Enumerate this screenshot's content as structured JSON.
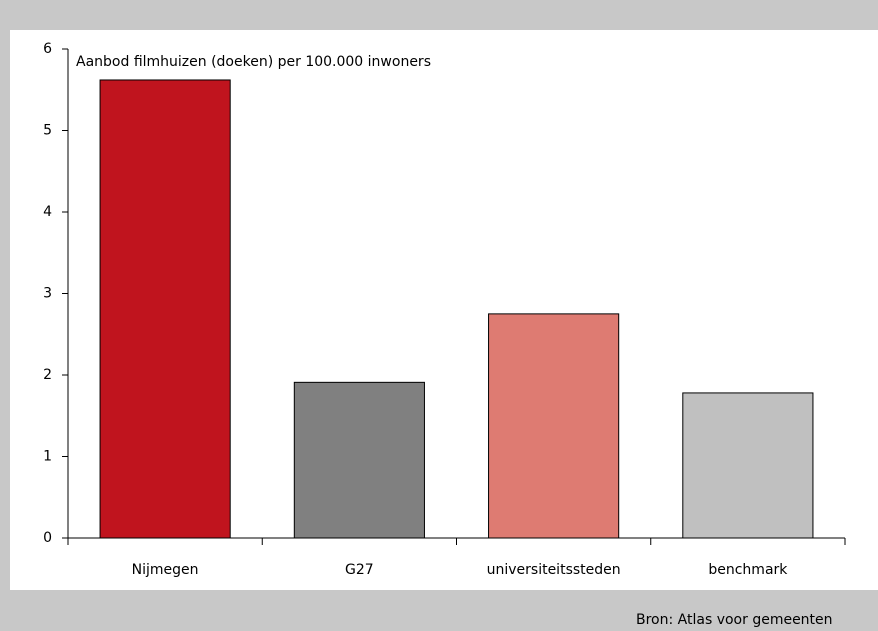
{
  "chart_data": {
    "type": "bar",
    "title": "Aanbod filmhuizen (doeken) per 100.000 inwoners",
    "source": "Bron: Atlas voor gemeenten",
    "categories": [
      "Nijmegen",
      "G27",
      "universiteitssteden",
      "benchmark"
    ],
    "values": [
      5.62,
      1.91,
      2.75,
      1.78
    ],
    "colors": [
      "#c0141e",
      "#808080",
      "#de7b72",
      "#c0c0c0"
    ],
    "ylim": [
      0,
      6
    ],
    "yticks": [
      0,
      1,
      2,
      3,
      4,
      5,
      6
    ],
    "grid": false
  }
}
